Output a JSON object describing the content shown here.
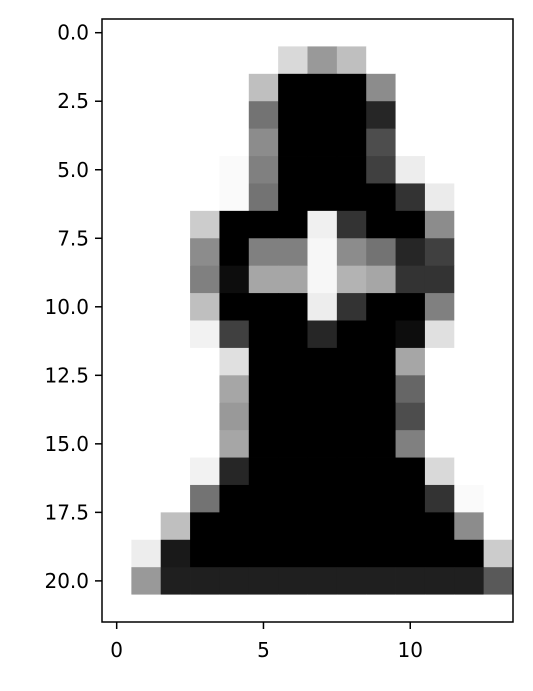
{
  "chart_data": {
    "type": "heatmap",
    "title": "",
    "xlabel": "",
    "ylabel": "",
    "colormap": "gray_r",
    "value_range": [
      0,
      1
    ],
    "x_range": [
      -0.5,
      13.5
    ],
    "y_range": [
      21.5,
      -0.5
    ],
    "x_ticks": [
      0,
      5,
      10
    ],
    "x_tick_labels": [
      "0",
      "5",
      "10"
    ],
    "y_ticks": [
      0.0,
      2.5,
      5.0,
      7.5,
      10.0,
      12.5,
      15.0,
      17.5,
      20.0
    ],
    "y_tick_labels": [
      "0.0",
      "2.5",
      "5.0",
      "7.5",
      "10.0",
      "12.5",
      "15.0",
      "17.5",
      "20.0"
    ],
    "grid": false,
    "matrix": [
      [
        0,
        0,
        0,
        0,
        0,
        0,
        0,
        0,
        0,
        0,
        0,
        0,
        0,
        0
      ],
      [
        0,
        0,
        0,
        0,
        0,
        0,
        0.15,
        0.4,
        0.25,
        0,
        0,
        0,
        0,
        0
      ],
      [
        0,
        0,
        0,
        0,
        0,
        0.25,
        1,
        1,
        1,
        0.45,
        0,
        0,
        0,
        0
      ],
      [
        0,
        0,
        0,
        0,
        0,
        0.55,
        1,
        1,
        1,
        0.85,
        0,
        0,
        0,
        0
      ],
      [
        0,
        0,
        0,
        0,
        0,
        0.45,
        1,
        1,
        1,
        0.7,
        0,
        0,
        0,
        0
      ],
      [
        0,
        0,
        0,
        0,
        0.02,
        0.5,
        1,
        1,
        1,
        0.75,
        0.07,
        0,
        0,
        0
      ],
      [
        0,
        0,
        0,
        0,
        0.02,
        0.55,
        1,
        1,
        1,
        1,
        0.8,
        0.08,
        0,
        0
      ],
      [
        0,
        0,
        0,
        0.2,
        1,
        1,
        1,
        0.06,
        0.8,
        1,
        1,
        0.45,
        0,
        0
      ],
      [
        0,
        0,
        0,
        0.45,
        1,
        0.5,
        0.5,
        0.03,
        0.45,
        0.55,
        0.85,
        0.75,
        0,
        0
      ],
      [
        0,
        0,
        0,
        0.5,
        0.95,
        0.35,
        0.35,
        0.03,
        0.3,
        0.35,
        0.8,
        0.8,
        0,
        0
      ],
      [
        0,
        0,
        0,
        0.25,
        1,
        1,
        1,
        0.07,
        0.8,
        1,
        1,
        0.5,
        0,
        0
      ],
      [
        0,
        0,
        0,
        0.05,
        0.75,
        1,
        1,
        0.85,
        1,
        1,
        0.95,
        0.12,
        0,
        0
      ],
      [
        0,
        0,
        0,
        0,
        0.12,
        1,
        1,
        1,
        1,
        1,
        0.35,
        0,
        0,
        0
      ],
      [
        0,
        0,
        0,
        0,
        0.35,
        1,
        1,
        1,
        1,
        1,
        0.6,
        0,
        0,
        0
      ],
      [
        0,
        0,
        0,
        0,
        0.4,
        1,
        1,
        1,
        1,
        1,
        0.7,
        0,
        0,
        0
      ],
      [
        0,
        0,
        0,
        0,
        0.35,
        1,
        1,
        1,
        1,
        1,
        0.5,
        0,
        0,
        0
      ],
      [
        0,
        0,
        0,
        0.05,
        0.85,
        1,
        1,
        1,
        1,
        1,
        1,
        0.15,
        0,
        0
      ],
      [
        0,
        0,
        0,
        0.55,
        1,
        1,
        1,
        1,
        1,
        1,
        1,
        0.8,
        0.02,
        0
      ],
      [
        0,
        0,
        0.25,
        1,
        1,
        1,
        1,
        1,
        1,
        1,
        1,
        1,
        0.45,
        0
      ],
      [
        0,
        0.07,
        0.9,
        1,
        1,
        1,
        1,
        1,
        1,
        1,
        1,
        1,
        1,
        0.2
      ],
      [
        0,
        0.4,
        0.88,
        0.88,
        0.88,
        0.88,
        0.88,
        0.88,
        0.88,
        0.88,
        0.88,
        0.88,
        0.88,
        0.65
      ],
      [
        0,
        0,
        0,
        0,
        0,
        0,
        0,
        0,
        0,
        0,
        0,
        0,
        0,
        0
      ]
    ]
  }
}
